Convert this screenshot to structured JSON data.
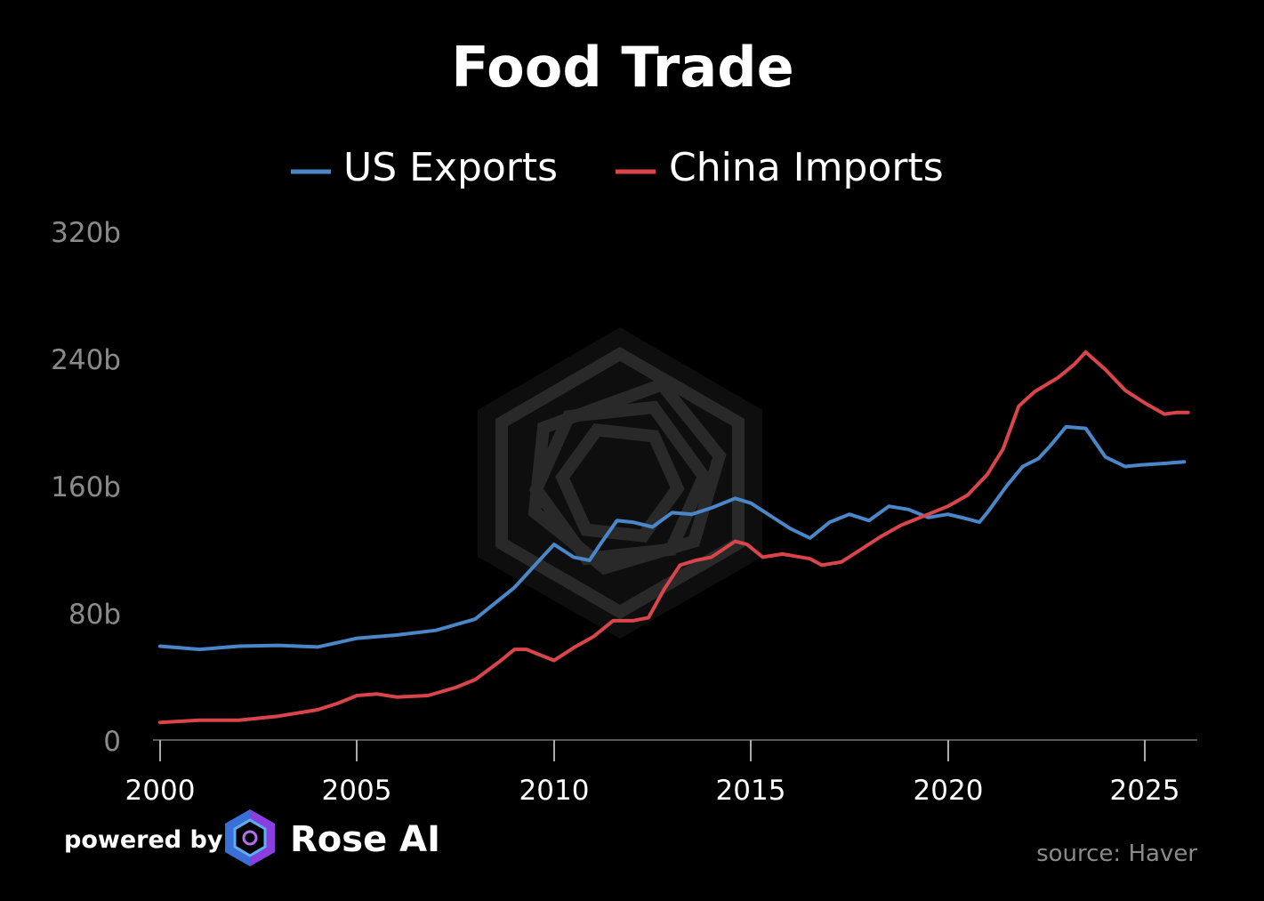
{
  "chart_data": {
    "type": "line",
    "title": "Food Trade",
    "xlabel": "",
    "ylabel": "",
    "xlim": [
      2000,
      2026.3
    ],
    "ylim": [
      0,
      320
    ],
    "y_ticks": [
      0,
      80,
      160,
      240,
      320
    ],
    "y_tick_labels": [
      "0",
      "80b",
      "160b",
      "240b",
      "320b"
    ],
    "x_ticks": [
      2000,
      2005,
      2010,
      2015,
      2020,
      2025
    ],
    "x_tick_labels": [
      "2000",
      "2005",
      "2010",
      "2015",
      "2020",
      "2025"
    ],
    "legend_position": "top-center",
    "series": [
      {
        "name": "US Exports",
        "color": "#4a86c8",
        "points": [
          [
            2000.0,
            59
          ],
          [
            2001.0,
            57
          ],
          [
            2002.0,
            59
          ],
          [
            2003.0,
            59.5
          ],
          [
            2004.0,
            58.5
          ],
          [
            2005.0,
            64
          ],
          [
            2006.0,
            66
          ],
          [
            2007.0,
            69
          ],
          [
            2008.0,
            76
          ],
          [
            2009.0,
            96
          ],
          [
            2010.0,
            123
          ],
          [
            2010.5,
            115
          ],
          [
            2010.9,
            113
          ],
          [
            2011.2,
            124
          ],
          [
            2011.6,
            138
          ],
          [
            2012.0,
            137
          ],
          [
            2012.5,
            134
          ],
          [
            2013.0,
            143
          ],
          [
            2013.5,
            142
          ],
          [
            2014.0,
            146
          ],
          [
            2014.6,
            152
          ],
          [
            2015.0,
            149
          ],
          [
            2015.5,
            141
          ],
          [
            2016.0,
            133
          ],
          [
            2016.5,
            127
          ],
          [
            2017.0,
            137
          ],
          [
            2017.5,
            142
          ],
          [
            2018.0,
            138
          ],
          [
            2018.5,
            147
          ],
          [
            2019.0,
            145
          ],
          [
            2019.5,
            140
          ],
          [
            2020.0,
            142
          ],
          [
            2020.5,
            139
          ],
          [
            2020.8,
            137
          ],
          [
            2021.0,
            143
          ],
          [
            2021.5,
            160
          ],
          [
            2021.9,
            172
          ],
          [
            2022.3,
            177
          ],
          [
            2022.6,
            185
          ],
          [
            2023.0,
            197
          ],
          [
            2023.5,
            196
          ],
          [
            2024.0,
            178
          ],
          [
            2024.5,
            172
          ],
          [
            2024.9,
            173
          ],
          [
            2025.5,
            174
          ],
          [
            2026.0,
            175
          ]
        ]
      },
      {
        "name": "China Imports",
        "color": "#d9454a",
        "points": [
          [
            2000.0,
            11
          ],
          [
            2001.0,
            12.5
          ],
          [
            2002.0,
            12.5
          ],
          [
            2003.0,
            15
          ],
          [
            2004.0,
            19
          ],
          [
            2004.5,
            23
          ],
          [
            2005.0,
            28
          ],
          [
            2005.5,
            29
          ],
          [
            2006.0,
            27
          ],
          [
            2006.8,
            28
          ],
          [
            2007.5,
            33
          ],
          [
            2008.0,
            38
          ],
          [
            2008.6,
            49
          ],
          [
            2009.0,
            57
          ],
          [
            2009.3,
            57
          ],
          [
            2010.0,
            50
          ],
          [
            2010.5,
            58
          ],
          [
            2011.0,
            65
          ],
          [
            2011.5,
            75
          ],
          [
            2012.0,
            75
          ],
          [
            2012.4,
            77
          ],
          [
            2012.8,
            95
          ],
          [
            2013.2,
            110
          ],
          [
            2013.6,
            113
          ],
          [
            2014.0,
            115
          ],
          [
            2014.6,
            125
          ],
          [
            2014.9,
            123
          ],
          [
            2015.3,
            115
          ],
          [
            2015.8,
            117
          ],
          [
            2016.5,
            114
          ],
          [
            2016.8,
            110
          ],
          [
            2017.3,
            112
          ],
          [
            2017.8,
            120
          ],
          [
            2018.3,
            128
          ],
          [
            2018.8,
            135
          ],
          [
            2019.5,
            142
          ],
          [
            2020.0,
            147
          ],
          [
            2020.5,
            154
          ],
          [
            2021.0,
            167
          ],
          [
            2021.4,
            183
          ],
          [
            2021.8,
            210
          ],
          [
            2022.2,
            219
          ],
          [
            2022.8,
            228
          ],
          [
            2023.2,
            236
          ],
          [
            2023.5,
            244
          ],
          [
            2024.0,
            233
          ],
          [
            2024.5,
            220
          ],
          [
            2025.0,
            212
          ],
          [
            2025.5,
            205
          ],
          [
            2025.8,
            206
          ],
          [
            2026.1,
            206
          ]
        ]
      }
    ]
  },
  "footer": {
    "powered_by": "powered by",
    "brand": "Rose AI",
    "source": "source: Haver"
  }
}
